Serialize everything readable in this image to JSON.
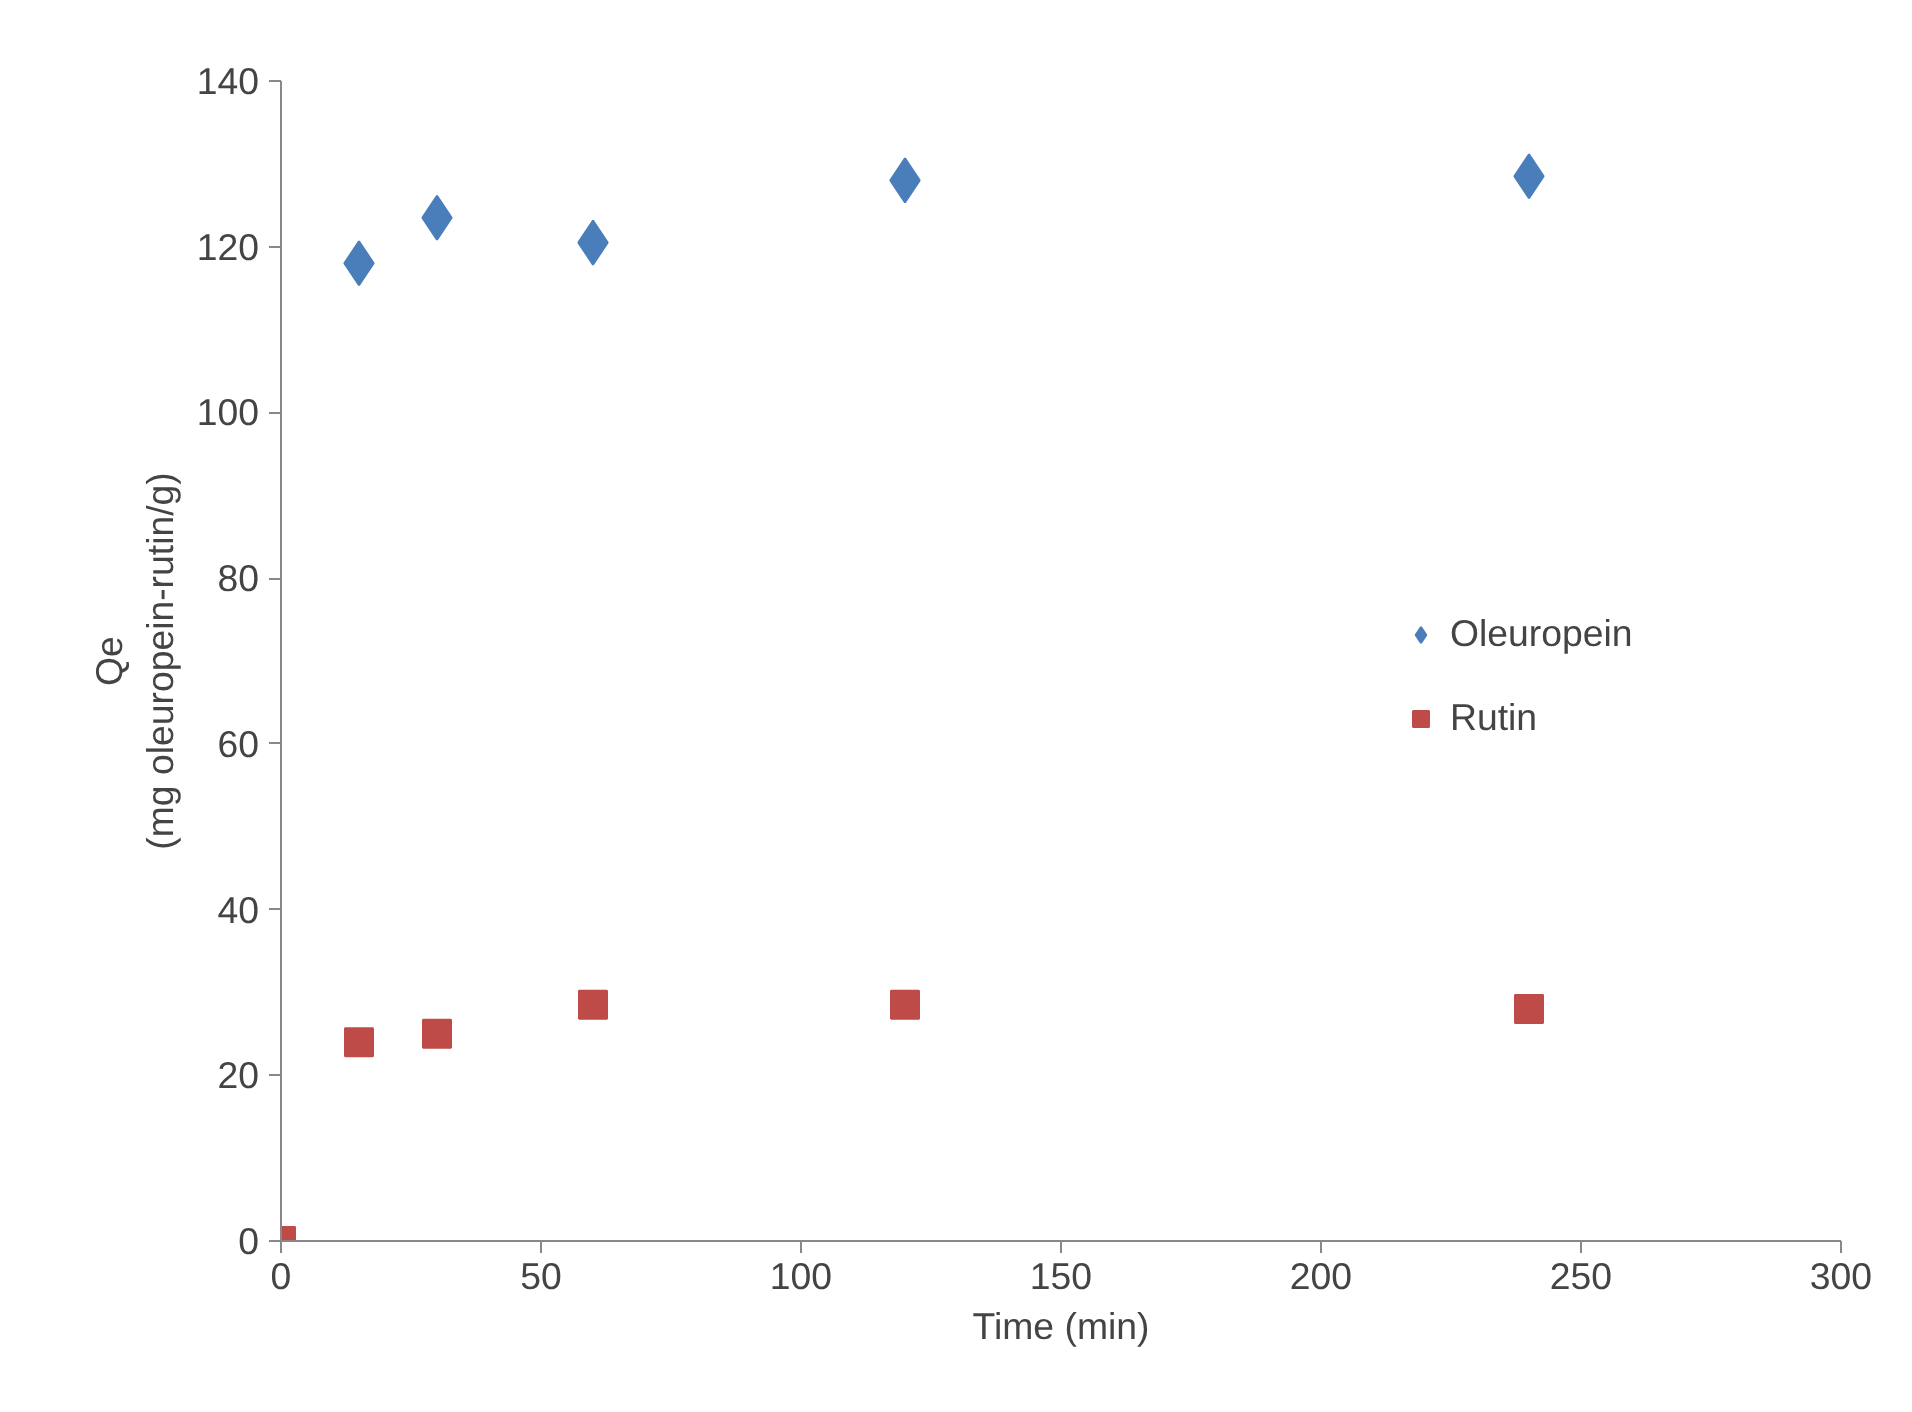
{
  "chart_data": {
    "type": "scatter",
    "xlabel": "Time (min)",
    "ylabel": "Qe\n(mg oleuropein-rutin/g)",
    "x": [
      0,
      15,
      30,
      60,
      120,
      240
    ],
    "series": [
      {
        "name": "Oleuropein",
        "color": "#4a7ebb",
        "marker": "diamond",
        "values": [
          null,
          118,
          123.5,
          120.5,
          128,
          128.5
        ]
      },
      {
        "name": "Rutin",
        "color": "#be4b48",
        "marker": "square",
        "values": [
          0,
          24,
          25,
          28.5,
          28.5,
          28
        ]
      }
    ],
    "xlim": [
      0,
      300
    ],
    "xticks": [
      0,
      50,
      100,
      150,
      200,
      250,
      300
    ],
    "ylim": [
      0,
      140
    ],
    "yticks": [
      0,
      20,
      40,
      60,
      80,
      100,
      120,
      140
    ],
    "grid": false,
    "legend": "right"
  }
}
